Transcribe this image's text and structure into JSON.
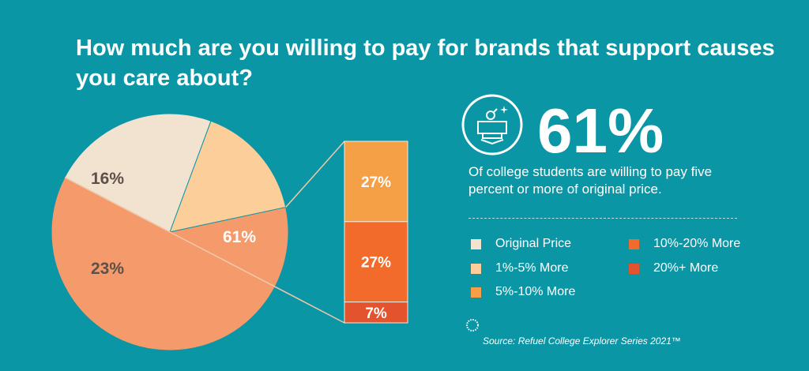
{
  "title": "How much are you willing to pay for brands that support causes you care about?",
  "headline": "61%",
  "subtext": "Of college students are willing to pay five percent or more of original price.",
  "source": "Source: Refuel College Explorer Series 2021™",
  "colors": {
    "background": "#0b96a6",
    "original_price": "#f2e3d0",
    "one_five": "#fccf9a",
    "five_ten": "#f5a046",
    "ten_twenty": "#f26b2a",
    "twenty_plus": "#e2532e",
    "pie_61": "#f59a6a"
  },
  "legend": [
    {
      "label": "Original Price",
      "color": "#f2e3d0"
    },
    {
      "label": "1%-5% More",
      "color": "#fccf9a"
    },
    {
      "label": "5%-10% More",
      "color": "#f5a046"
    },
    {
      "label": "10%-20% More",
      "color": "#f26b2a"
    },
    {
      "label": "20%+ More",
      "color": "#e2532e"
    }
  ],
  "chart_data": {
    "type": "pie",
    "title": "How much are you willing to pay for brands that support causes you care about?",
    "pie": [
      {
        "label": "23%",
        "value": 23,
        "color": "#f2e3d0"
      },
      {
        "label": "16%",
        "value": 16,
        "color": "#fccf9a"
      },
      {
        "label": "61%",
        "value": 61,
        "color": "#f59a6a"
      }
    ],
    "breakdown_bar": [
      {
        "label": "27%",
        "value": 27,
        "color": "#f5a046"
      },
      {
        "label": "27%",
        "value": 27,
        "color": "#f26b2a"
      },
      {
        "label": "7%",
        "value": 7,
        "color": "#e2532e"
      }
    ]
  }
}
